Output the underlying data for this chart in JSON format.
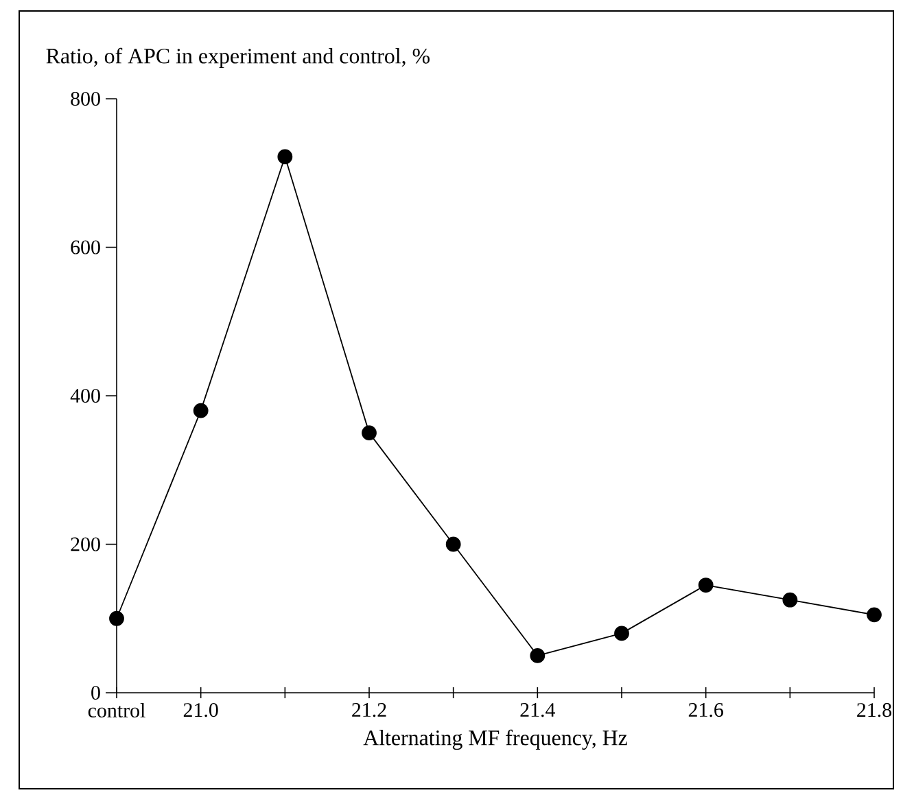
{
  "chart_data": {
    "type": "line",
    "ylabel": "Ratio, of APC in experiment and control, %",
    "xlabel": "Alternating MF frequency, Hz",
    "categories": [
      "control",
      "21.0",
      null,
      "21.2",
      null,
      "21.4",
      null,
      "21.6",
      null,
      "21.8"
    ],
    "values": [
      100,
      380,
      722,
      350,
      200,
      50,
      80,
      145,
      125,
      105
    ],
    "color": "#000000",
    "marker": "circle",
    "line_style": "solid",
    "ylim": [
      0,
      800
    ],
    "yticks": [
      0,
      200,
      400,
      600,
      800
    ]
  }
}
